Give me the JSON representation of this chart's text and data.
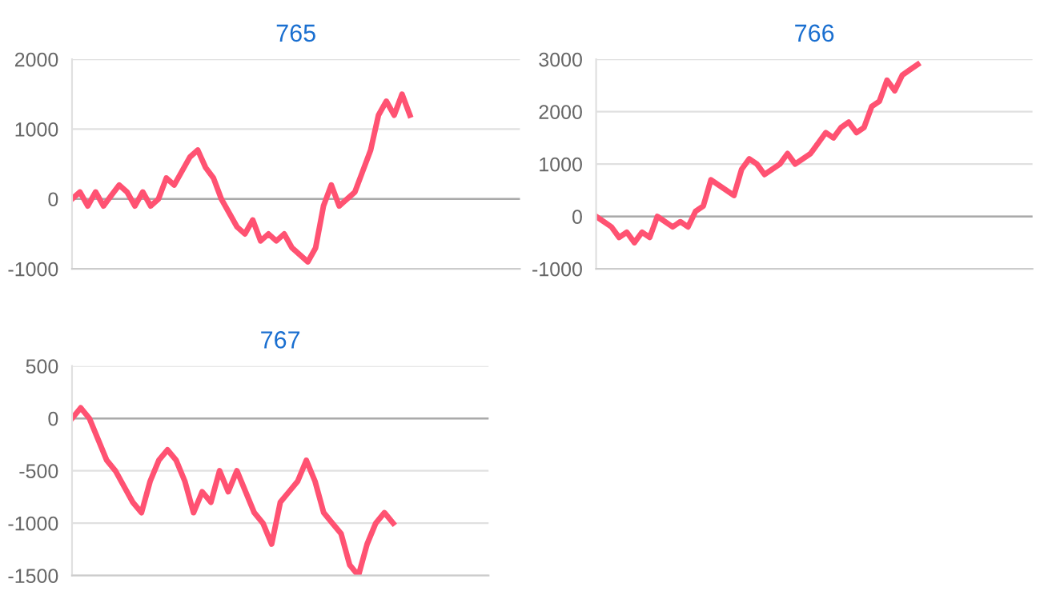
{
  "chart_data": [
    {
      "type": "line",
      "title": "765",
      "categories": [
        null,
        null,
        null,
        null,
        null,
        null,
        null,
        null,
        null,
        null,
        null,
        null,
        null,
        null,
        null,
        null,
        null,
        null,
        null,
        null,
        null,
        null,
        null,
        null,
        null,
        null,
        null,
        null,
        null,
        null,
        null,
        null,
        null,
        null,
        null,
        null,
        null,
        null,
        null,
        null,
        null,
        null,
        null,
        null,
        null,
        null,
        null,
        null,
        null,
        null,
        null,
        null,
        null,
        null,
        null,
        null,
        null,
        null
      ],
      "series": [
        {
          "color": "#ff5272",
          "values": [
            0,
            100,
            -100,
            100,
            -100,
            50,
            200,
            100,
            -100,
            100,
            -100,
            0,
            300,
            200,
            400,
            600,
            700,
            450,
            300,
            0,
            -200,
            -400,
            -500,
            -300,
            -600,
            -500,
            -600,
            -500,
            -700,
            -800,
            -900,
            -700,
            -100,
            200,
            -100,
            0,
            100,
            400,
            700,
            1200,
            1400,
            1200,
            1500,
            1200,
            null,
            null,
            null,
            null,
            null,
            null,
            null,
            null,
            null,
            null,
            null,
            null,
            null,
            null
          ]
        }
      ],
      "ylim": [
        -1000,
        2000
      ],
      "yticks": [
        -1000,
        0,
        1000,
        2000
      ],
      "grid": "y",
      "marker": "none",
      "line_style": "solid",
      "legend": false
    },
    {
      "type": "line",
      "title": "766",
      "categories": [
        null,
        null,
        null,
        null,
        null,
        null,
        null,
        null,
        null,
        null,
        null,
        null,
        null,
        null,
        null,
        null,
        null,
        null,
        null,
        null,
        null,
        null,
        null,
        null,
        null,
        null,
        null,
        null,
        null,
        null,
        null,
        null,
        null,
        null,
        null,
        null,
        null,
        null,
        null,
        null,
        null,
        null,
        null,
        null,
        null,
        null,
        null,
        null,
        null,
        null,
        null,
        null,
        null,
        null,
        null,
        null,
        null,
        null
      ],
      "series": [
        {
          "color": "#ff5272",
          "values": [
            0,
            -100,
            -200,
            -400,
            -300,
            -500,
            -300,
            -400,
            0,
            -100,
            -200,
            -100,
            -200,
            100,
            200,
            700,
            600,
            500,
            400,
            900,
            1100,
            1000,
            800,
            900,
            1000,
            1200,
            1000,
            1100,
            1200,
            1400,
            1600,
            1500,
            1700,
            1800,
            1600,
            1700,
            2100,
            2200,
            2600,
            2400,
            2700,
            2800,
            2900,
            null,
            null,
            null,
            null,
            null,
            null,
            null,
            null,
            null,
            null,
            null,
            null,
            null,
            null,
            null
          ]
        }
      ],
      "ylim": [
        -1000,
        3000
      ],
      "yticks": [
        -1000,
        0,
        1000,
        2000,
        3000
      ],
      "grid": "y",
      "marker": "none",
      "line_style": "solid",
      "legend": false
    },
    {
      "type": "line",
      "title": "767",
      "categories": [
        null,
        null,
        null,
        null,
        null,
        null,
        null,
        null,
        null,
        null,
        null,
        null,
        null,
        null,
        null,
        null,
        null,
        null,
        null,
        null,
        null,
        null,
        null,
        null,
        null,
        null,
        null,
        null,
        null,
        null,
        null,
        null,
        null,
        null,
        null,
        null,
        null,
        null,
        null,
        null,
        null,
        null,
        null,
        null,
        null,
        null,
        null,
        null,
        null
      ],
      "series": [
        {
          "color": "#ff5272",
          "values": [
            0,
            100,
            0,
            -200,
            -400,
            -500,
            -650,
            -800,
            -900,
            -600,
            -400,
            -300,
            -400,
            -600,
            -900,
            -700,
            -800,
            -500,
            -700,
            -500,
            -700,
            -900,
            -1000,
            -1200,
            -800,
            -700,
            -600,
            -400,
            -600,
            -900,
            -1000,
            -1100,
            -1400,
            -1500,
            -1200,
            -1000,
            -900,
            -1000,
            null,
            null,
            null,
            null,
            null,
            null,
            null,
            null,
            null,
            null,
            null
          ]
        }
      ],
      "ylim": [
        -1500,
        500
      ],
      "yticks": [
        -1500,
        -1000,
        -500,
        0,
        500
      ],
      "grid": "y",
      "marker": "none",
      "line_style": "solid",
      "legend": false
    }
  ]
}
